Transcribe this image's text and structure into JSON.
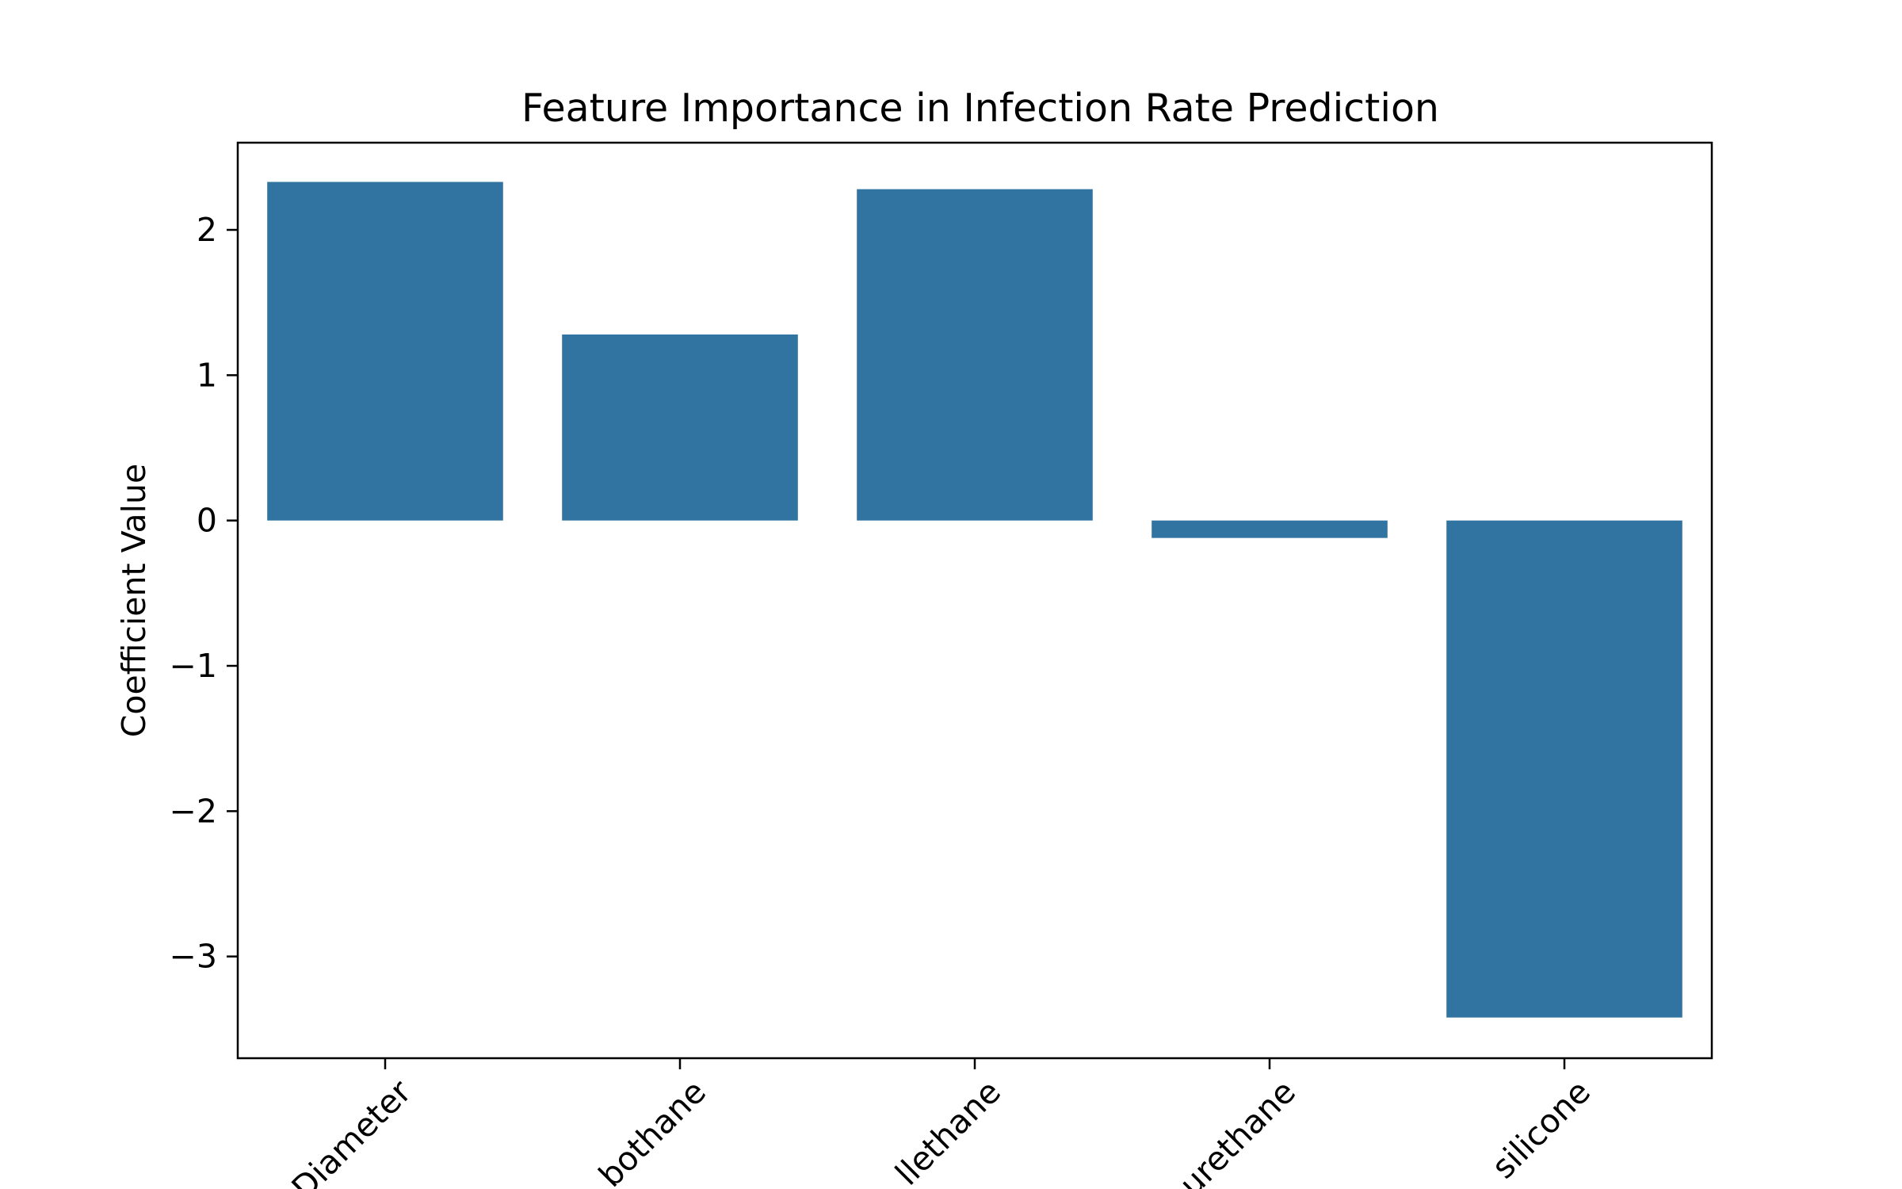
{
  "chart_data": {
    "type": "bar",
    "title": "Feature Importance in Infection Rate Prediction",
    "xlabel": "",
    "ylabel": "Coefficient Value",
    "categories": [
      "Diameter",
      "Carbothane",
      "Chronoflex Carbothane Pellethane",
      "Polyurethane",
      "silicone"
    ],
    "visible_tick_labels": [
      "Diameter",
      "bothane",
      "llethane",
      "urethane",
      "silicone"
    ],
    "values": [
      2.33,
      1.28,
      2.28,
      -0.12,
      -3.42
    ],
    "ylim": [
      -3.7,
      2.6
    ],
    "yticks": [
      2,
      1,
      0,
      -1,
      -2,
      -3
    ],
    "ytick_labels": [
      "2",
      "1",
      "0",
      "−1",
      "−2",
      "−3"
    ],
    "bar_color": "#3274a1",
    "grid": false,
    "legend": "none"
  }
}
